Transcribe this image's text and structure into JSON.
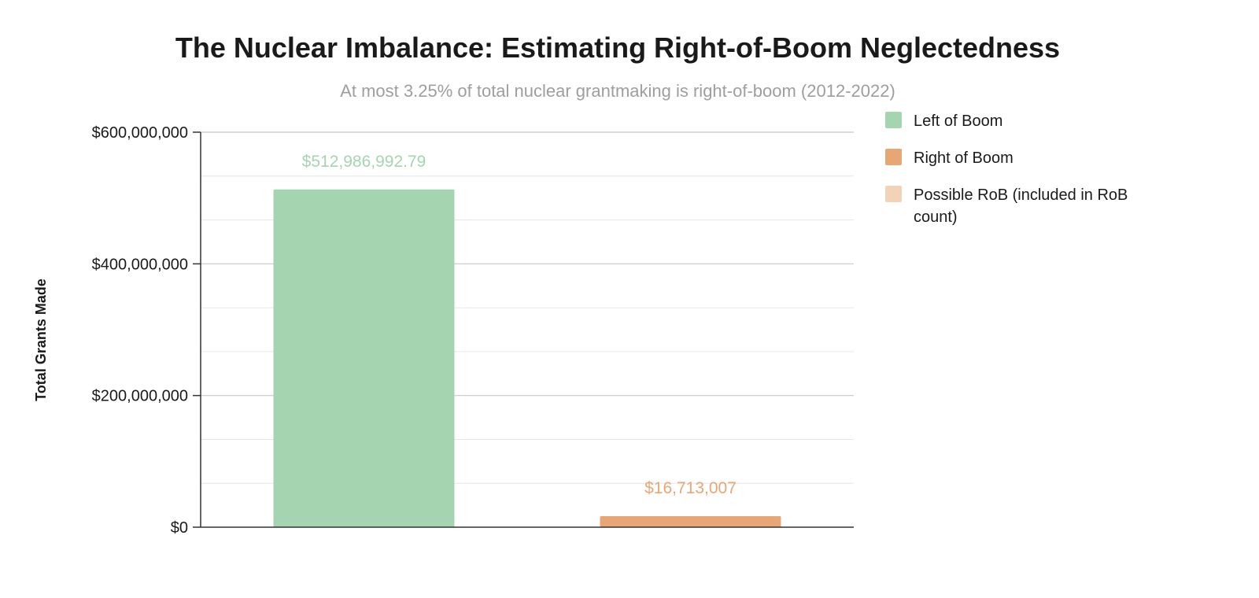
{
  "chart_data": {
    "type": "bar",
    "title": "The Nuclear Imbalance: Estimating Right-of-Boom Neglectedness",
    "subtitle": "At most 3.25% of total nuclear grantmaking is right-of-boom (2012-2022)",
    "xlabel": "",
    "ylabel": "Total Grants Made",
    "ylim": [
      0,
      600000000
    ],
    "yticks": [
      {
        "value": 0,
        "label": "$0"
      },
      {
        "value": 200000000,
        "label": "$200,000,000"
      },
      {
        "value": 400000000,
        "label": "$400,000,000"
      },
      {
        "value": 600000000,
        "label": "$600,000,000"
      }
    ],
    "minor_gridlines": [
      66666667,
      133333333,
      266666667,
      333333333,
      466666667,
      533333333
    ],
    "grid": true,
    "legend_position": "right",
    "bars": [
      {
        "name": "Left of Boom",
        "value": 512986992.79,
        "label": "$512,986,992.79",
        "color": "#a4d5b0"
      },
      {
        "name": "Right of Boom",
        "value": 16713007,
        "label": "$16,713,007",
        "color": "#e8a674"
      }
    ],
    "legend": [
      {
        "name": "Left of Boom",
        "color": "#a4d5b0"
      },
      {
        "name": "Right of Boom",
        "color": "#e8a674"
      },
      {
        "name": "Possible RoB (included in RoB count)",
        "lines": [
          "Possible RoB (included in RoB",
          "count)"
        ],
        "color": "#f2d3b8"
      }
    ]
  }
}
